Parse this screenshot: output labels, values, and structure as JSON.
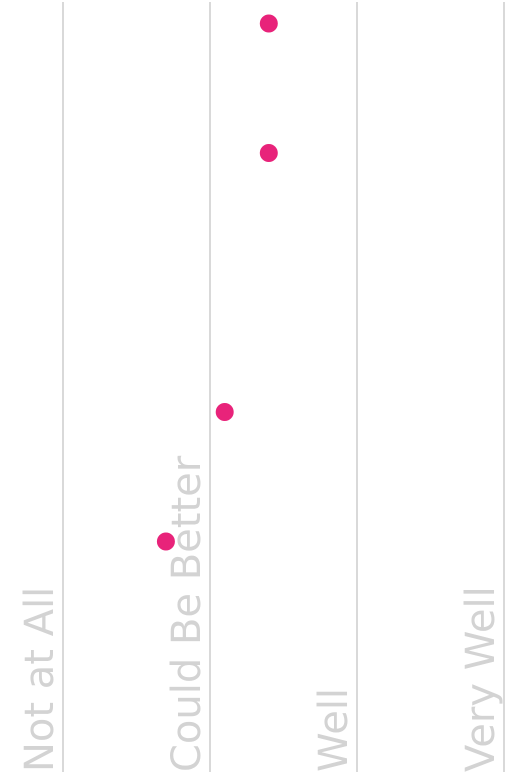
{
  "chart_data": {
    "type": "scatter",
    "orientation": "horizontal",
    "title": "",
    "xlabel": "",
    "ylabel": "",
    "categories": [
      "Not at All",
      "Could Be Better",
      "Well",
      "Very Well"
    ],
    "xlim": [
      1,
      4
    ],
    "grid": true,
    "legend": "none",
    "series": [
      {
        "color": "#e8237a",
        "points": [
          {
            "x": 2.4,
            "y": 1
          },
          {
            "x": 2.4,
            "y": 2
          },
          {
            "x": 2.1,
            "y": 4
          },
          {
            "x": 1.7,
            "y": 5
          }
        ]
      }
    ]
  },
  "colors": {
    "dot": "#e8237a",
    "grid": "#d9d9d9",
    "tick_label": "#d3d3d3"
  }
}
